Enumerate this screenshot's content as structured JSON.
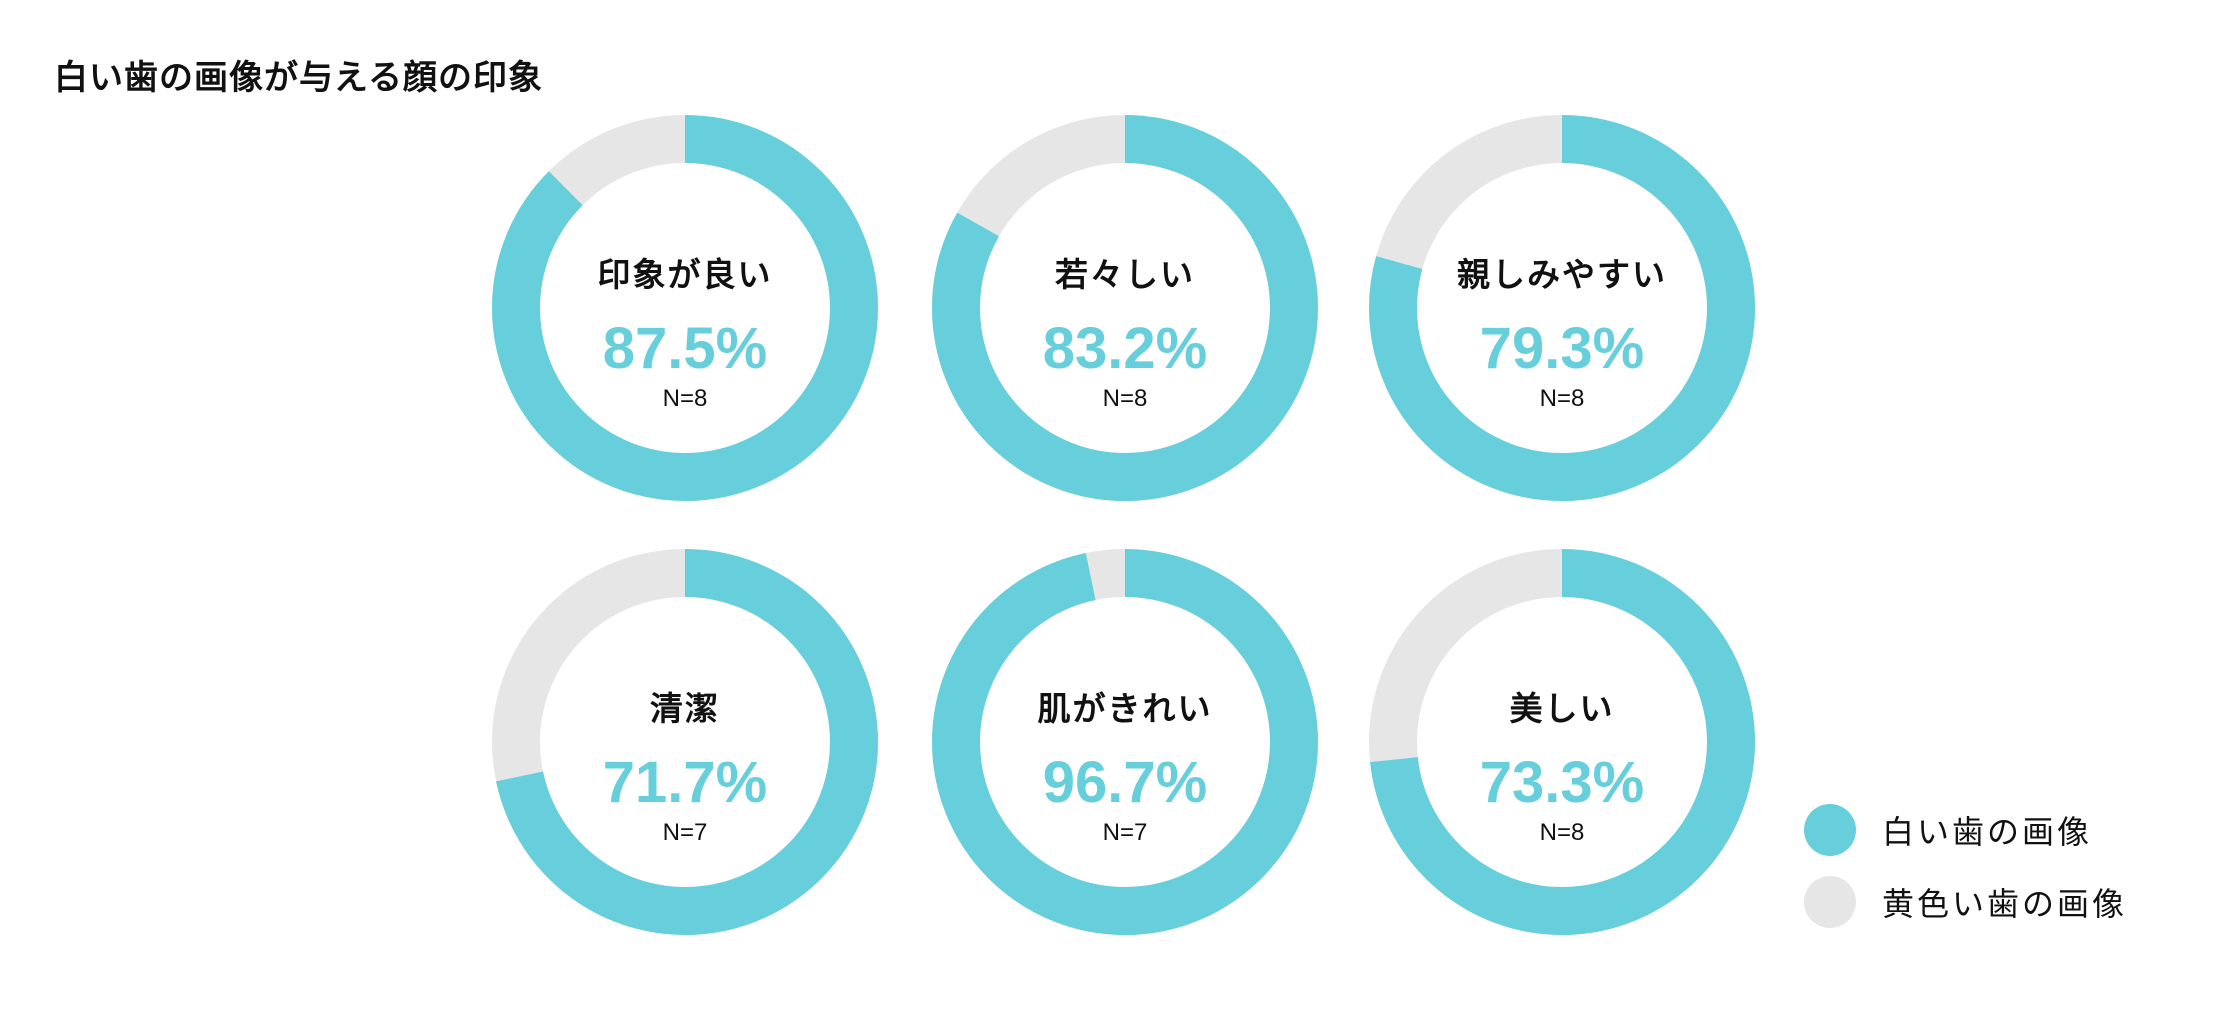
{
  "title": "白い歯の画像が与える顔の印象",
  "colors": {
    "white_teeth": "#66CFDB",
    "yellow_teeth": "#E6E6E6"
  },
  "chart_data": {
    "type": "pie",
    "variant": "donut",
    "legend_position": "bottom-right",
    "legend": [
      "白い歯の画像",
      "黄色い歯の画像"
    ],
    "charts": [
      {
        "label": "印象が良い",
        "percent_label": "87.5%",
        "n_label": "N=8",
        "values": [
          87.5,
          12.5
        ]
      },
      {
        "label": "若々しい",
        "percent_label": "83.2%",
        "n_label": "N=8",
        "values": [
          83.2,
          16.8
        ]
      },
      {
        "label": "親しみやすい",
        "percent_label": "79.3%",
        "n_label": "N=8",
        "values": [
          79.3,
          20.7
        ]
      },
      {
        "label": "清潔",
        "percent_label": "71.7%",
        "n_label": "N=7",
        "values": [
          71.7,
          28.3
        ]
      },
      {
        "label": "肌がきれい",
        "percent_label": "96.7%",
        "n_label": "N=7",
        "values": [
          96.7,
          3.3
        ]
      },
      {
        "label": "美しい",
        "percent_label": "73.3%",
        "n_label": "N=8",
        "values": [
          73.3,
          26.7
        ]
      }
    ]
  }
}
